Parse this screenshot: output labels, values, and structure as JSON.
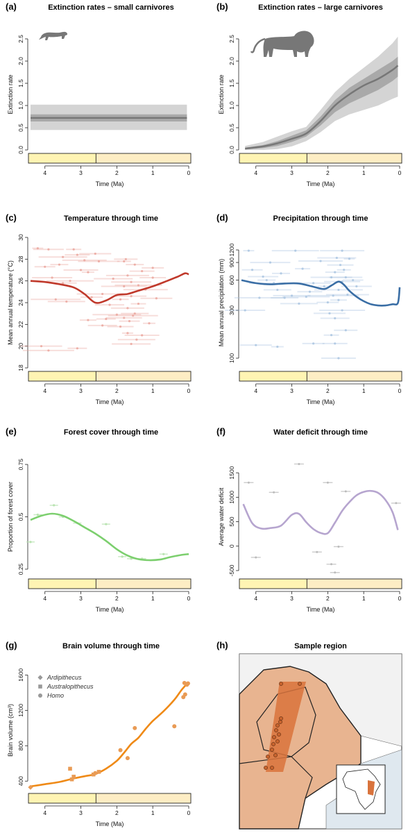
{
  "colors": {
    "red": "#c0392b",
    "red_light": "#eaa29a",
    "blue": "#3a6ea5",
    "blue_light": "#a8c3e0",
    "green": "#7ccf6e",
    "green_light": "#b9e3b1",
    "lavender": "#b6a5cf",
    "orange": "#ef8a17",
    "orange_pt": "#e99b55",
    "gray_dark": "#777777",
    "gray_mid": "#a9a9a9",
    "gray_light": "#d4d4d4",
    "pliocene": "#fff4b3",
    "pleistocene": "#fdedc4",
    "map_region": "#e8b490",
    "map_band": "#d9733c",
    "map_point": "#c8642e"
  },
  "panels": {
    "a": {
      "label": "(a)",
      "title": "Extinction rates – small carnivores"
    },
    "b": {
      "label": "(b)",
      "title": "Extinction rates – large carnivores"
    },
    "c": {
      "label": "(c)",
      "title": "Temperature through time"
    },
    "d": {
      "label": "(d)",
      "title": "Precipitation through time"
    },
    "e": {
      "label": "(e)",
      "title": "Forest cover through time"
    },
    "f": {
      "label": "(f)",
      "title": "Water deficit through time"
    },
    "g": {
      "label": "(g)",
      "title": "Brain volume through time"
    },
    "h": {
      "label": "(h)",
      "title": "Sample region"
    }
  },
  "chart_data": [
    {
      "id": "a",
      "type": "area",
      "title": "Extinction rates – small carnivores",
      "xlabel": "Time (Ma)",
      "ylabel": "Extinction rate",
      "xlim": [
        4.4,
        0
      ],
      "ylim": [
        0,
        2.5
      ],
      "xticks": [
        4,
        3,
        2,
        1,
        0
      ],
      "xtick_labels": [
        "4",
        "3",
        "2",
        "1",
        "0"
      ],
      "yticks": [
        0.0,
        0.5,
        1.0,
        1.5,
        2.0,
        2.5
      ],
      "ytick_labels": [
        "0.0",
        "0.5",
        "1.0",
        "1.5",
        "2.0",
        "2.5"
      ],
      "x": [
        4.4,
        0.05
      ],
      "mean": [
        0.72,
        0.72
      ],
      "band_outer": [
        [
          0.45,
          0.45
        ],
        [
          1.02,
          1.02
        ]
      ],
      "band_inner": [
        [
          0.64,
          0.64
        ],
        [
          0.8,
          0.8
        ]
      ]
    },
    {
      "id": "b",
      "type": "area",
      "title": "Extinction rates – large carnivores",
      "xlabel": "Time (Ma)",
      "ylabel": "Extinction rate",
      "xlim": [
        4.4,
        0
      ],
      "ylim": [
        0,
        2.5
      ],
      "xticks": [
        4,
        3,
        2,
        1,
        0
      ],
      "xtick_labels": [
        "4",
        "3",
        "2",
        "1",
        "0"
      ],
      "yticks": [
        0.0,
        0.5,
        1.0,
        1.5,
        2.0,
        2.5
      ],
      "ytick_labels": [
        "0.0",
        "0.5",
        "1.0",
        "1.5",
        "2.0",
        "2.5"
      ],
      "x": [
        4.3,
        3.8,
        3.4,
        3.0,
        2.6,
        2.2,
        1.8,
        1.4,
        1.0,
        0.6,
        0.2,
        0.05
      ],
      "mean": [
        0.03,
        0.08,
        0.15,
        0.25,
        0.37,
        0.65,
        1.0,
        1.25,
        1.45,
        1.6,
        1.8,
        1.9
      ],
      "band_outer_low": [
        0.0,
        0.0,
        0.02,
        0.08,
        0.2,
        0.4,
        0.65,
        0.8,
        0.9,
        1.0,
        1.15,
        1.2
      ],
      "band_outer_high": [
        0.09,
        0.18,
        0.3,
        0.42,
        0.52,
        0.9,
        1.3,
        1.6,
        1.85,
        2.1,
        2.4,
        2.55
      ],
      "band_inner_low": [
        0.01,
        0.04,
        0.09,
        0.18,
        0.3,
        0.55,
        0.85,
        1.05,
        1.2,
        1.35,
        1.55,
        1.65
      ],
      "band_inner_high": [
        0.05,
        0.11,
        0.2,
        0.32,
        0.44,
        0.75,
        1.12,
        1.4,
        1.6,
        1.8,
        2.0,
        2.1
      ]
    },
    {
      "id": "c",
      "type": "line",
      "title": "Temperature through time",
      "xlabel": "Time (Ma)",
      "ylabel": "Mean annual temperature (°C)",
      "xlim": [
        4.4,
        0
      ],
      "ylim": [
        18,
        30
      ],
      "xticks": [
        4,
        3,
        2,
        1,
        0
      ],
      "xtick_labels": [
        "4",
        "3",
        "2",
        "1",
        "0"
      ],
      "yticks": [
        18,
        20,
        22,
        24,
        26,
        28,
        30
      ],
      "ytick_labels": [
        "18",
        "20",
        "22",
        "24",
        "26",
        "28",
        "30"
      ],
      "x": [
        4.4,
        4.0,
        3.6,
        3.2,
        2.9,
        2.6,
        2.3,
        2.0,
        1.7,
        1.4,
        1.0,
        0.6,
        0.3,
        0.1,
        0.0
      ],
      "y": [
        26.0,
        25.9,
        25.7,
        25.4,
        24.8,
        24.0,
        24.2,
        24.7,
        24.8,
        25.1,
        25.5,
        26.0,
        26.4,
        26.7,
        26.6
      ],
      "points": [
        [
          4.2,
          29.0
        ],
        [
          4.0,
          27.3
        ],
        [
          3.9,
          28.9
        ],
        [
          3.8,
          26.3
        ],
        [
          3.7,
          24.3
        ],
        [
          3.6,
          27.5
        ],
        [
          3.5,
          25.8
        ],
        [
          3.4,
          24.1
        ],
        [
          3.3,
          26.0
        ],
        [
          3.2,
          28.9
        ],
        [
          3.1,
          28.4
        ],
        [
          3.0,
          27.0
        ],
        [
          2.9,
          27.9
        ],
        [
          2.8,
          26.8
        ],
        [
          2.7,
          24.5
        ],
        [
          2.6,
          28.5
        ],
        [
          2.5,
          27.8
        ],
        [
          2.4,
          24.8
        ],
        [
          2.3,
          22.5
        ],
        [
          2.2,
          23.8
        ],
        [
          2.1,
          26.2
        ],
        [
          2.0,
          22.9
        ],
        [
          1.9,
          24.3
        ],
        [
          1.9,
          21.8
        ],
        [
          1.8,
          22.6
        ],
        [
          1.8,
          25.5
        ],
        [
          1.8,
          27.8
        ],
        [
          1.75,
          28.0
        ],
        [
          1.7,
          23.5
        ],
        [
          1.7,
          26.5
        ],
        [
          1.7,
          21.2
        ],
        [
          1.65,
          22.3
        ],
        [
          1.6,
          24.6
        ],
        [
          1.6,
          25.9
        ],
        [
          1.55,
          22.8
        ],
        [
          1.5,
          27.5
        ],
        [
          1.5,
          23.0
        ],
        [
          1.45,
          20.6
        ],
        [
          1.4,
          25.6
        ],
        [
          1.4,
          23.9
        ],
        [
          1.3,
          26.9
        ],
        [
          1.3,
          21.0
        ],
        [
          1.2,
          25.2
        ],
        [
          1.1,
          22.1
        ],
        [
          1.0,
          27.2
        ],
        [
          0.9,
          24.4
        ],
        [
          4.1,
          20.0
        ],
        [
          3.9,
          19.6
        ],
        [
          3.1,
          19.8
        ],
        [
          2.4,
          21.9
        ],
        [
          1.6,
          20.2
        ],
        [
          3.5,
          28.2
        ],
        [
          2.8,
          22.4
        ],
        [
          1.0,
          26.3
        ]
      ]
    },
    {
      "id": "d",
      "type": "line",
      "title": "Precipitation through time",
      "xlabel": "Time (Ma)",
      "ylabel": "Mean annual precipitation (mm)",
      "scale_y": "log",
      "xlim": [
        4.4,
        0
      ],
      "ylim": [
        80,
        1600
      ],
      "xticks": [
        4,
        3,
        2,
        1,
        0
      ],
      "xtick_labels": [
        "4",
        "3",
        "2",
        "1",
        "0"
      ],
      "yticks": [
        100,
        300,
        600,
        900,
        1200
      ],
      "ytick_labels": [
        "100",
        "300",
        "600",
        "900",
        "1200"
      ],
      "x": [
        4.4,
        4.0,
        3.6,
        3.2,
        2.8,
        2.4,
        2.1,
        1.9,
        1.7,
        1.55,
        1.4,
        1.2,
        1.0,
        0.8,
        0.6,
        0.4,
        0.2,
        0.05,
        0.0
      ],
      "y": [
        600,
        560,
        545,
        555,
        555,
        515,
        490,
        530,
        580,
        540,
        470,
        410,
        370,
        345,
        335,
        335,
        345,
        355,
        510
      ],
      "points": [
        [
          4.2,
          1180
        ],
        [
          4.1,
          760
        ],
        [
          3.8,
          650
        ],
        [
          3.6,
          900
        ],
        [
          3.5,
          560
        ],
        [
          3.3,
          700
        ],
        [
          3.2,
          400
        ],
        [
          3.0,
          420
        ],
        [
          2.9,
          1180
        ],
        [
          2.7,
          780
        ],
        [
          2.5,
          460
        ],
        [
          2.4,
          560
        ],
        [
          2.2,
          930
        ],
        [
          2.1,
          520
        ],
        [
          2.0,
          360
        ],
        [
          1.95,
          280
        ],
        [
          1.9,
          640
        ],
        [
          1.85,
          420
        ],
        [
          1.8,
          720
        ],
        [
          1.8,
          250
        ],
        [
          1.75,
          1000
        ],
        [
          1.7,
          480
        ],
        [
          1.7,
          380
        ],
        [
          1.65,
          850
        ],
        [
          1.6,
          580
        ],
        [
          1.6,
          300
        ],
        [
          1.55,
          760
        ],
        [
          1.5,
          190
        ],
        [
          1.5,
          640
        ],
        [
          1.45,
          430
        ],
        [
          1.4,
          980
        ],
        [
          1.3,
          600
        ],
        [
          1.2,
          520
        ],
        [
          4.3,
          300
        ],
        [
          3.9,
          400
        ],
        [
          3.7,
          600
        ],
        [
          3.4,
          480
        ],
        [
          2.8,
          350
        ],
        [
          2.6,
          410
        ],
        [
          1.9,
          170
        ],
        [
          1.8,
          140
        ],
        [
          1.7,
          100
        ],
        [
          1.6,
          1180
        ],
        [
          3.4,
          130
        ],
        [
          2.4,
          140
        ],
        [
          4.0,
          135
        ]
      ]
    },
    {
      "id": "e",
      "type": "line",
      "title": "Forest cover through time",
      "xlabel": "Time (Ma)",
      "ylabel": "Proportion of forest cover",
      "xlim": [
        4.4,
        0
      ],
      "ylim": [
        0.22,
        0.78
      ],
      "xticks": [
        4,
        3,
        2,
        1,
        0
      ],
      "xtick_labels": [
        "4",
        "3",
        "2",
        "1",
        "0"
      ],
      "yticks": [
        0.25,
        0.5,
        0.75
      ],
      "ytick_labels": [
        "0.25",
        "0.5",
        "0.75"
      ],
      "x": [
        4.4,
        4.1,
        3.8,
        3.5,
        3.2,
        2.9,
        2.6,
        2.3,
        2.0,
        1.7,
        1.4,
        1.1,
        0.8,
        0.5,
        0.2,
        0.0
      ],
      "y": [
        0.485,
        0.505,
        0.515,
        0.505,
        0.48,
        0.45,
        0.42,
        0.385,
        0.345,
        0.315,
        0.298,
        0.293,
        0.296,
        0.308,
        0.318,
        0.322
      ],
      "points": [
        [
          4.2,
          0.51
        ],
        [
          3.75,
          0.555
        ],
        [
          3.5,
          0.5
        ],
        [
          3.1,
          0.47
        ],
        [
          2.3,
          0.465
        ],
        [
          1.85,
          0.31
        ],
        [
          1.6,
          0.3
        ],
        [
          1.3,
          0.3
        ],
        [
          0.7,
          0.322
        ],
        [
          4.4,
          0.38
        ]
      ]
    },
    {
      "id": "f",
      "type": "line",
      "title": "Water deficit through time",
      "xlabel": "Time (Ma)",
      "ylabel": "Average water deficit",
      "xlim": [
        4.4,
        0
      ],
      "ylim": [
        -600,
        1800
      ],
      "xticks": [
        4,
        3,
        2,
        1,
        0
      ],
      "xtick_labels": [
        "4",
        "3",
        "2",
        "1",
        "0"
      ],
      "yticks": [
        -500,
        0,
        500,
        1000,
        1500
      ],
      "ytick_labels": [
        "-500",
        "0",
        "500",
        "1000",
        "1500"
      ],
      "x": [
        4.35,
        4.1,
        3.85,
        3.6,
        3.3,
        3.0,
        2.8,
        2.6,
        2.4,
        2.2,
        2.0,
        1.8,
        1.6,
        1.4,
        1.2,
        1.0,
        0.8,
        0.6,
        0.4,
        0.2,
        0.05
      ],
      "y": [
        860,
        470,
        360,
        370,
        420,
        640,
        660,
        490,
        350,
        270,
        265,
        480,
        720,
        900,
        1040,
        1110,
        1130,
        1090,
        950,
        700,
        330
      ],
      "points": [
        [
          4.2,
          1300
        ],
        [
          4.0,
          -230
        ],
        [
          2.8,
          1680
        ],
        [
          2.0,
          1300
        ],
        [
          1.9,
          -370
        ],
        [
          1.8,
          -540
        ],
        [
          1.5,
          1120
        ],
        [
          2.3,
          -120
        ],
        [
          0.1,
          880
        ],
        [
          3.5,
          1100
        ],
        [
          1.7,
          -10
        ]
      ]
    },
    {
      "id": "g",
      "type": "scatter",
      "title": "Brain volume through time",
      "xlabel": "Time (Ma)",
      "ylabel": "Brain volume (cm³)",
      "xlim": [
        4.4,
        0
      ],
      "ylim": [
        300,
        1650
      ],
      "xticks": [
        4,
        3,
        2,
        1,
        0
      ],
      "xtick_labels": [
        "4",
        "3",
        "2",
        "1",
        "0"
      ],
      "yticks": [
        400,
        800,
        1200,
        1600
      ],
      "ytick_labels": [
        "400",
        "800",
        "1200",
        "1600"
      ],
      "legend": [
        "Ardipithecus",
        "Australopithecus",
        "Homo"
      ],
      "legend_position": "top-left",
      "curve_x": [
        4.4,
        4.0,
        3.6,
        3.2,
        2.9,
        2.6,
        2.3,
        2.0,
        1.8,
        1.6,
        1.4,
        1.2,
        1.0,
        0.7,
        0.4,
        0.2,
        0.05
      ],
      "curve_y": [
        340,
        365,
        390,
        430,
        455,
        480,
        540,
        630,
        720,
        820,
        890,
        990,
        1080,
        1190,
        1320,
        1430,
        1500
      ],
      "series": [
        {
          "name": "Ardipithecus",
          "shape": "diamond",
          "points": [
            [
              4.4,
              330
            ]
          ]
        },
        {
          "name": "Australopithecus",
          "shape": "square",
          "points": [
            [
              3.3,
              540
            ],
            [
              3.2,
              450
            ],
            [
              3.25,
              420
            ],
            [
              2.65,
              475
            ],
            [
              2.5,
              505
            ]
          ]
        },
        {
          "name": "Homo",
          "shape": "circle",
          "points": [
            [
              1.9,
              750
            ],
            [
              1.7,
              660
            ],
            [
              1.5,
              1000
            ],
            [
              2.6,
              490
            ],
            [
              0.4,
              1020
            ],
            [
              0.15,
              1350
            ],
            [
              0.1,
              1380
            ],
            [
              0.12,
              1510
            ],
            [
              0.05,
              1490
            ],
            [
              0.02,
              1505
            ]
          ]
        }
      ]
    }
  ],
  "epoch_bar": {
    "boundary_ma": 2.58
  }
}
